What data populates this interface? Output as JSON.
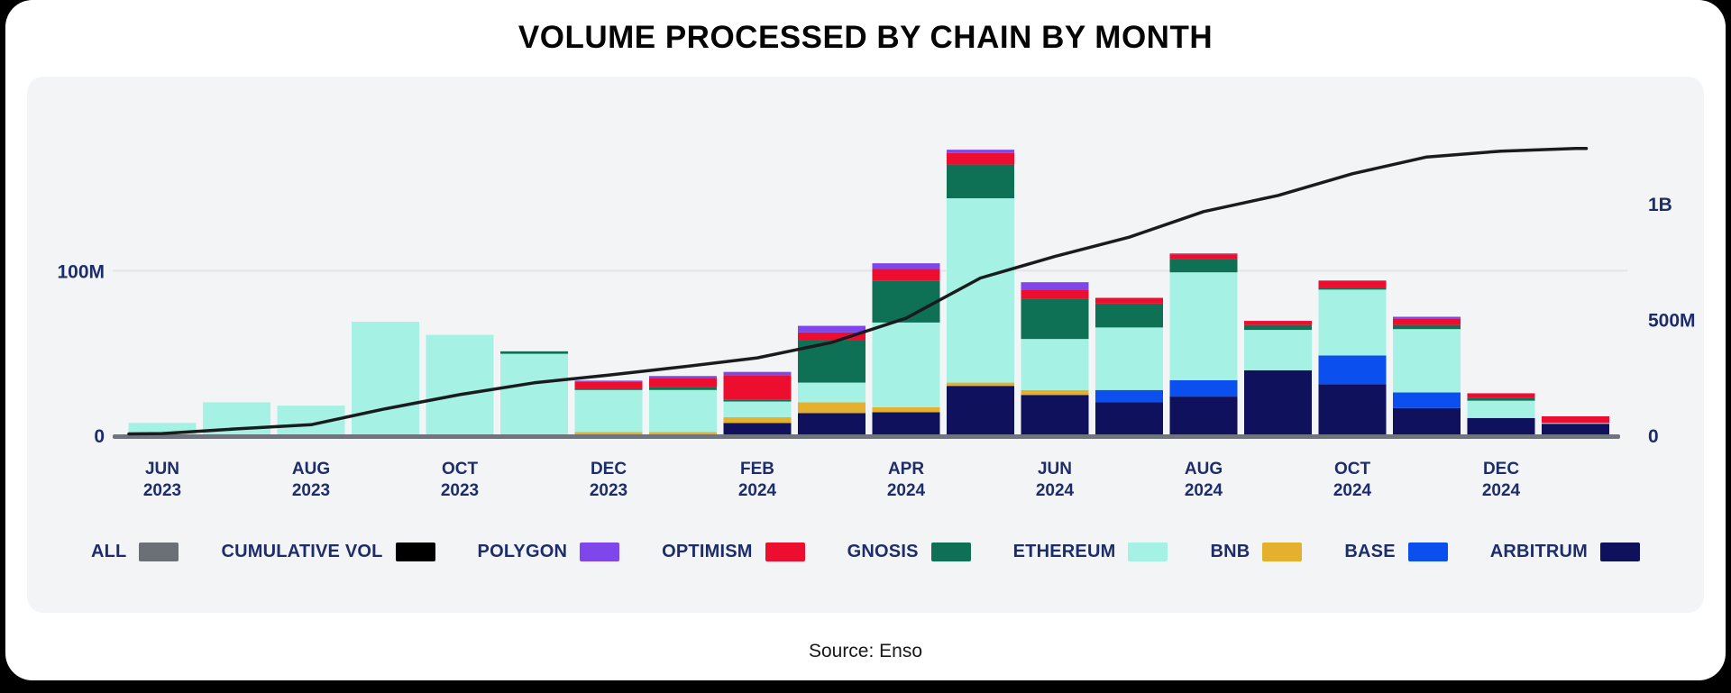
{
  "title": "VOLUME PROCESSED BY CHAIN BY MONTH",
  "source": "Source: Enso",
  "chart_data": {
    "type": "bar",
    "subtype": "stacked-bars-with-cumulative-line",
    "title": "VOLUME PROCESSED BY CHAIN BY MONTH",
    "units": "M (millions, USD volume)",
    "grid": "single horizontal gridline at 100M",
    "legend_position": "bottom",
    "categories": [
      "JUN 2023",
      "JUL 2023",
      "AUG 2023",
      "SEP 2023",
      "OCT 2023",
      "NOV 2023",
      "DEC 2023",
      "JAN 2024",
      "FEB 2024",
      "MAR 2024",
      "APR 2024",
      "MAY 2024",
      "JUN 2024",
      "JUL 2024",
      "AUG 2024",
      "SEP 2024",
      "OCT 2024",
      "NOV 2024",
      "DEC 2024",
      "JAN 2025"
    ],
    "x_tick_labels": [
      "JUN 2023",
      "AUG 2023",
      "OCT 2023",
      "DEC 2023",
      "FEB 2024",
      "APR 2024",
      "JUN 2024",
      "AUG 2024",
      "OCT 2024",
      "DEC 2024"
    ],
    "x_tick_every": 2,
    "series": [
      {
        "name": "ARBITRUM",
        "color": "#10115c",
        "values": [
          0,
          0,
          0,
          0,
          0,
          0,
          0,
          0,
          7.5,
          13.5,
          14,
          30,
          24.5,
          20,
          23.5,
          39.5,
          31,
          16.5,
          10.5,
          7
        ]
      },
      {
        "name": "BASE",
        "color": "#0b50ee",
        "values": [
          0,
          0,
          0,
          0,
          0,
          0,
          0,
          0,
          0,
          0,
          0,
          0,
          0,
          7.5,
          10,
          0,
          17.5,
          9.5,
          0,
          0
        ]
      },
      {
        "name": "BNB",
        "color": "#e5b02e",
        "values": [
          0,
          0,
          0,
          0,
          0,
          0,
          2,
          2,
          3.5,
          6.5,
          3,
          2,
          3,
          0,
          0,
          0,
          0,
          0,
          0,
          0
        ]
      },
      {
        "name": "ETHEREUM",
        "color": "#a5f2e4",
        "values": [
          7.5,
          20,
          18,
          69,
          61,
          49.5,
          25.5,
          25.5,
          9.5,
          12,
          51.5,
          112,
          31,
          38,
          65.5,
          24.5,
          40,
          38.5,
          10.5,
          0.5
        ]
      },
      {
        "name": "GNOSIS",
        "color": "#0e7155",
        "values": [
          0,
          0,
          0,
          0,
          0,
          1.5,
          1,
          2,
          1,
          25.5,
          25.5,
          20.5,
          24.5,
          14.5,
          8,
          3,
          1,
          2.5,
          1.5,
          0
        ]
      },
      {
        "name": "OPTIMISM",
        "color": "#ed0e2f",
        "values": [
          0,
          0,
          0,
          0,
          0,
          0,
          4,
          5,
          15,
          5,
          7,
          7,
          5.5,
          3.5,
          3,
          2.5,
          4.5,
          4,
          3,
          4
        ]
      },
      {
        "name": "POLYGON",
        "color": "#7f46ec",
        "values": [
          0,
          0,
          0,
          0,
          0,
          0,
          0.7,
          1.5,
          2,
          4,
          3.5,
          2,
          4.5,
          0,
          0.5,
          0,
          0,
          1,
          0,
          0
        ]
      }
    ],
    "line_series": {
      "name": "CUMULATIVE VOL",
      "color": "#1a1b1e",
      "axis": "right",
      "values": [
        7.5,
        27.5,
        45.5,
        114.5,
        175.5,
        226.5,
        259.7,
        295.7,
        334.2,
        400.7,
        505.2,
        678.7,
        771.7,
        855.2,
        965.7,
        1035.2,
        1129.2,
        1201.2,
        1226.7,
        1238.2
      ]
    },
    "left_axis": {
      "ticks": [
        {
          "label": "0",
          "value": 0
        },
        {
          "label": "100M",
          "value": 100
        }
      ],
      "max": 190
    },
    "right_axis": {
      "ticks": [
        {
          "label": "0",
          "value": 0
        },
        {
          "label": "500M",
          "value": 500
        },
        {
          "label": "1B",
          "value": 1000
        }
      ],
      "max": 1350
    },
    "legend": [
      {
        "label": "ALL",
        "color": "#6b7076"
      },
      {
        "label": "CUMULATIVE VOL",
        "color": "#000000"
      },
      {
        "label": "POLYGON",
        "color": "#7f46ec"
      },
      {
        "label": "OPTIMISM",
        "color": "#ed0e2f"
      },
      {
        "label": "GNOSIS",
        "color": "#0e7155"
      },
      {
        "label": "ETHEREUM",
        "color": "#a5f2e4"
      },
      {
        "label": "BNB",
        "color": "#e5b02e"
      },
      {
        "label": "BASE",
        "color": "#0b50ee"
      },
      {
        "label": "ARBITRUM",
        "color": "#10115c"
      }
    ],
    "style": {
      "panel_bg": "#f3f4f6",
      "card_bg": "#ffffff",
      "page_bg": "#000000",
      "gridline_color": "#e3e4e8",
      "baseline_color": "#70747c",
      "axis_text_color": "#1d2d6b"
    }
  }
}
